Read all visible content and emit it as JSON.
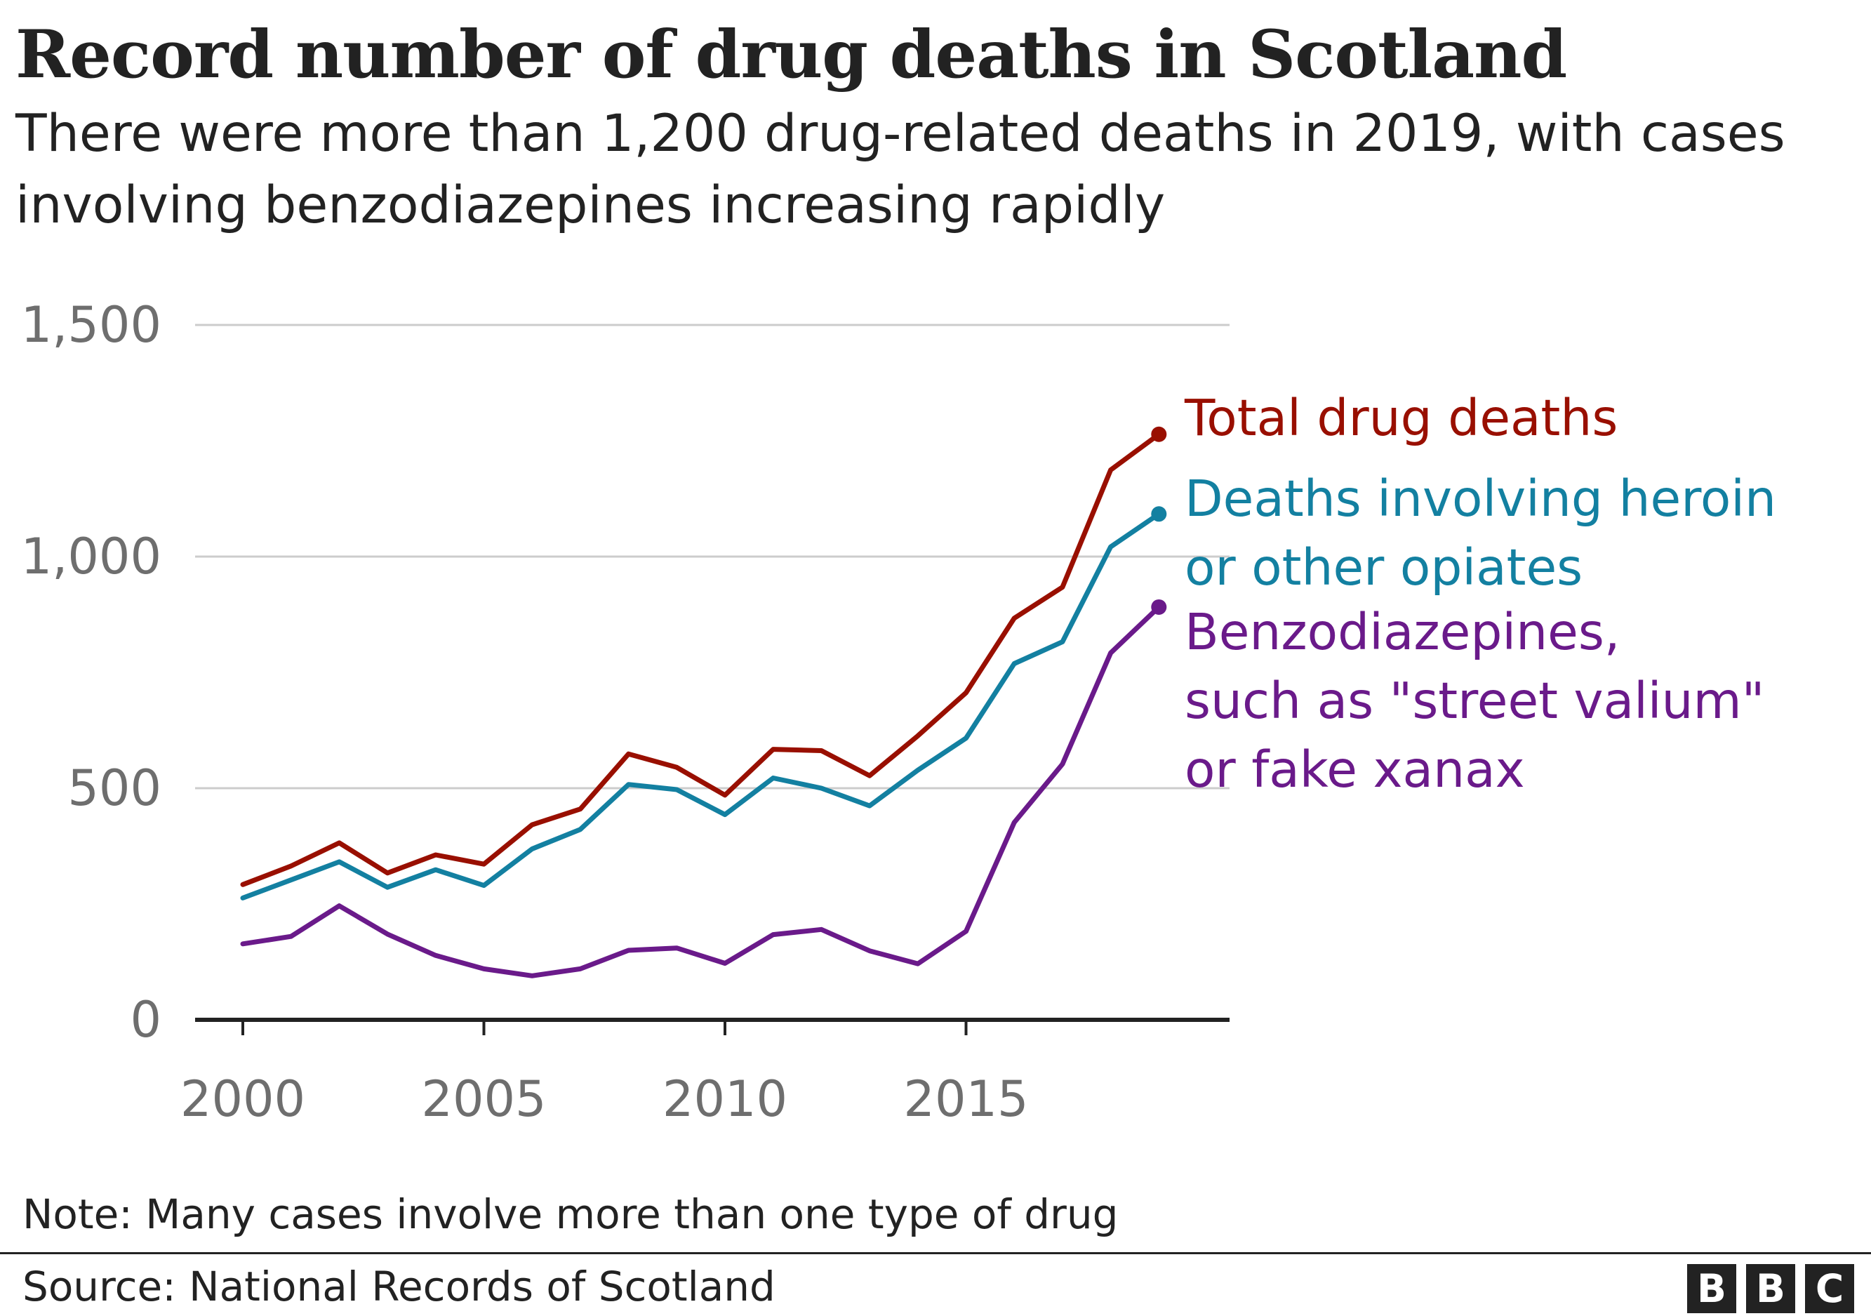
{
  "title": "Record number of drug deaths in Scotland",
  "subtitle": "There were more than 1,200 drug-related deaths in 2019, with cases involving benzodiazepines increasing rapidly",
  "note": "Note: Many cases involve more than one type of drug",
  "source": "Source: National Records of Scotland",
  "logo": [
    "B",
    "B",
    "C"
  ],
  "chart_data": {
    "type": "line",
    "x": [
      2000,
      2001,
      2002,
      2003,
      2004,
      2005,
      2006,
      2007,
      2008,
      2009,
      2010,
      2011,
      2012,
      2013,
      2014,
      2015,
      2016,
      2017,
      2018,
      2019
    ],
    "xlim": [
      2000,
      2020
    ],
    "xticks": [
      2000,
      2005,
      2010,
      2015
    ],
    "xtick_labels": [
      "2000",
      "2005",
      "2010",
      "2015"
    ],
    "ylim": [
      0,
      1500
    ],
    "yticks": [
      0,
      500,
      1000,
      1500
    ],
    "ytick_labels": [
      "0",
      "500",
      "1,000",
      "1,500"
    ],
    "grid": true,
    "series": [
      {
        "name": "Total drug deaths",
        "label_lines": [
          "Total drug deaths"
        ],
        "color": "#990f00",
        "values": [
          292,
          332,
          382,
          317,
          356,
          336,
          421,
          455,
          574,
          545,
          485,
          584,
          581,
          527,
          613,
          706,
          867,
          934,
          1187,
          1264
        ]
      },
      {
        "name": "Deaths involving heroin or other opiates",
        "label_lines": [
          "Deaths involving heroin",
          "or other opiates"
        ],
        "color": "#1380a1",
        "values": [
          263,
          302,
          341,
          286,
          324,
          290,
          369,
          411,
          508,
          497,
          443,
          522,
          500,
          462,
          539,
          608,
          769,
          816,
          1021,
          1092
        ]
      },
      {
        "name": "Benzodiazepines, such as \"street valium\" or fake xanax",
        "label_lines": [
          "Benzodiazepines,",
          "such as \"street valium\"",
          "or fake xanax"
        ],
        "color": "#6a1a8a",
        "values": [
          164,
          180,
          246,
          185,
          139,
          110,
          95,
          110,
          150,
          155,
          122,
          184,
          195,
          149,
          121,
          191,
          426,
          552,
          792,
          891
        ]
      }
    ]
  }
}
